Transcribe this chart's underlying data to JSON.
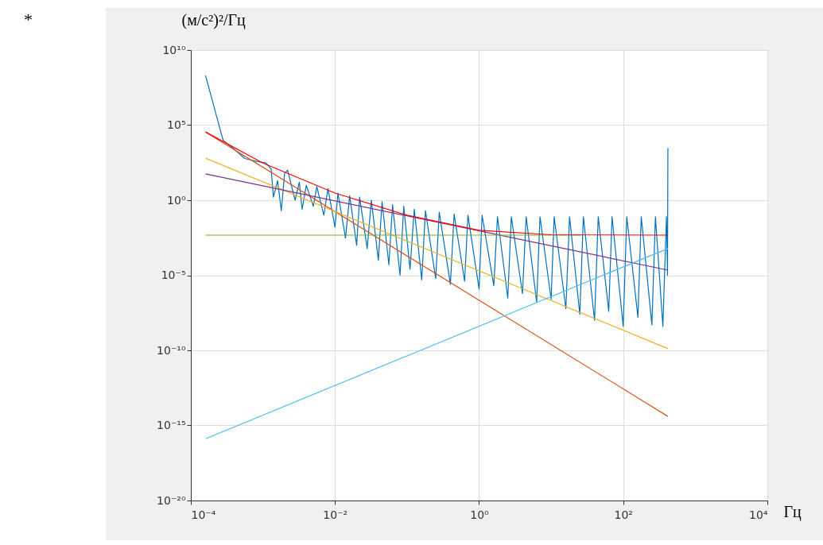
{
  "chart_data": {
    "type": "line",
    "ylabel": "(м/с²)²/Гц",
    "xlabel": "Гц",
    "annotations": [
      "*"
    ],
    "log": "xy",
    "grid": true,
    "xlim": [
      0.0001,
      10000
    ],
    "xticks": [
      {
        "value": 0.0001,
        "label": "10⁻⁴"
      },
      {
        "value": 0.01,
        "label": "10⁻²"
      },
      {
        "value": 1,
        "label": "10⁰"
      },
      {
        "value": 100,
        "label": "10²"
      },
      {
        "value": 10000,
        "label": "10⁴"
      }
    ],
    "ylim": [
      1e-20,
      10000000000.0
    ],
    "yticks": [
      {
        "value": 1e-20,
        "label": "10⁻²⁰"
      },
      {
        "value": 1e-15,
        "label": "10⁻¹⁵"
      },
      {
        "value": 1e-10,
        "label": "10⁻¹⁰"
      },
      {
        "value": 1e-05,
        "label": "10⁻⁵"
      },
      {
        "value": 1,
        "label": "10⁰"
      },
      {
        "value": 100000,
        "label": "10⁵"
      },
      {
        "value": 10000000000.0,
        "label": "10¹⁰"
      }
    ],
    "series": [
      {
        "color": "#0072bd",
        "x": [
          0.00016,
          0.00028,
          0.0004,
          0.00056,
          0.0008,
          0.0011,
          0.0013,
          0.0014,
          0.0016,
          0.0018,
          0.002,
          0.0022,
          0.0028,
          0.0032,
          0.0035,
          0.004,
          0.005,
          0.0056,
          0.007,
          0.008,
          0.01,
          0.011,
          0.014,
          0.016,
          0.02,
          0.022,
          0.028,
          0.032,
          0.04,
          0.045,
          0.056,
          0.063,
          0.08,
          0.09,
          0.11,
          0.126,
          0.16,
          0.18,
          0.25,
          0.28,
          0.4,
          0.45,
          0.63,
          0.7,
          1,
          1.1,
          1.6,
          1.8,
          2.5,
          2.8,
          4,
          4.5,
          6.3,
          7,
          10,
          11,
          16,
          18,
          25,
          28,
          40,
          45,
          63,
          70,
          100,
          112,
          160,
          178,
          250,
          280,
          355,
          398,
          412,
          417
        ],
        "values": [
          200000000.0,
          10000,
          2500,
          600,
          400,
          300,
          120,
          1.6,
          20,
          0.2,
          60,
          100,
          1,
          16,
          0.25,
          10,
          0.4,
          8,
          0.1,
          6,
          0.016,
          3,
          0.003,
          2,
          0.001,
          1.6,
          0.0006,
          1,
          0.0001,
          0.8,
          5e-05,
          0.5,
          1e-05,
          0.4,
          2.5e-05,
          0.25,
          5e-06,
          0.2,
          6e-06,
          0.16,
          2.5e-06,
          0.12,
          4e-06,
          0.1,
          1.2e-06,
          0.1,
          2e-06,
          0.08,
          3e-07,
          0.08,
          6e-07,
          0.08,
          1.6e-07,
          0.08,
          2.5e-07,
          0.08,
          6e-08,
          0.08,
          2.5e-08,
          0.08,
          1e-08,
          0.08,
          4e-08,
          0.08,
          4e-09,
          0.08,
          1.6e-08,
          0.08,
          5e-09,
          0.08,
          4e-09,
          0.08,
          1e-05,
          3000
        ]
      },
      {
        "color": "#d95319",
        "x": [
          0.00016,
          417
        ],
        "values": [
          35000,
          4e-15
        ]
      },
      {
        "color": "#edb120",
        "x": [
          0.00016,
          417
        ],
        "values": [
          630,
          1.3e-10
        ]
      },
      {
        "color": "#7e2f8e",
        "x": [
          0.00016,
          417
        ],
        "values": [
          56,
          2.2e-05
        ]
      },
      {
        "color": "#77ac30",
        "x": [
          0.00016,
          26
        ],
        "values": [
          0.0047,
          0.0047
        ]
      },
      {
        "color": "#4dbeee",
        "x": [
          0.00016,
          417
        ],
        "values": [
          1.3e-16,
          0.0006
        ]
      },
      {
        "color": "#ff0000",
        "x": [
          0.00016,
          0.001,
          0.01,
          0.1,
          1,
          10,
          417
        ],
        "values": [
          35000,
          300,
          3,
          0.1,
          0.01,
          0.005,
          0.0047
        ]
      }
    ]
  }
}
